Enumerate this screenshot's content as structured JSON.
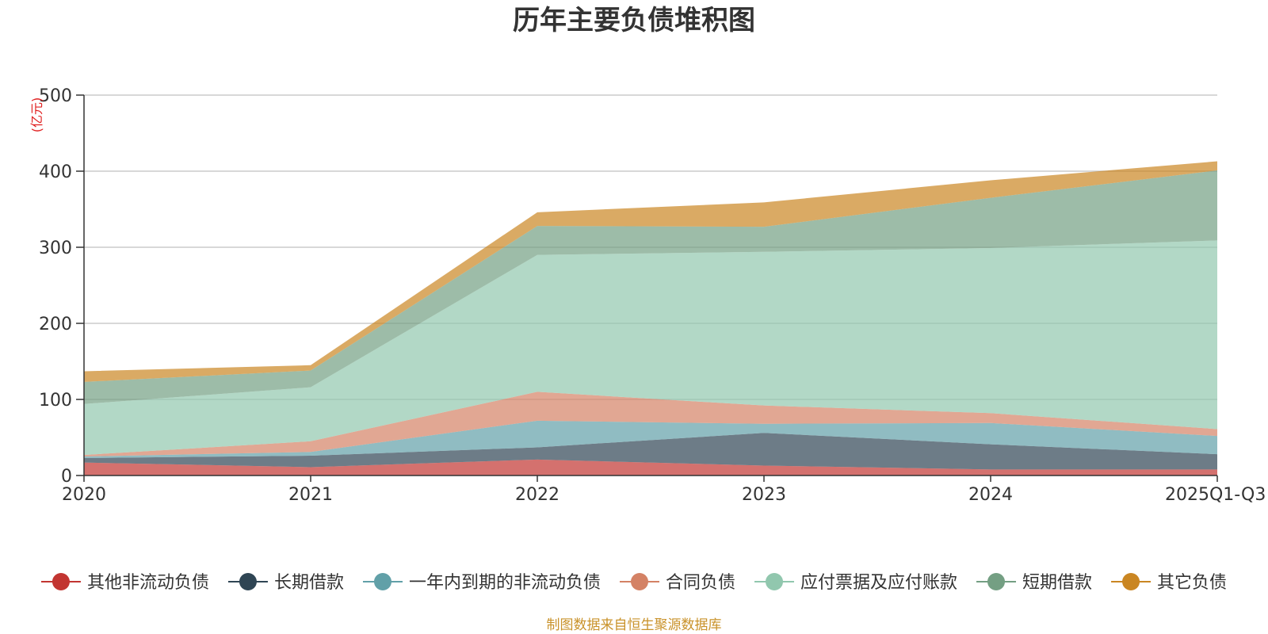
{
  "chart_data": {
    "type": "area",
    "stacked": true,
    "title": "历年主要负债堆积图",
    "unit_label": "(亿元)",
    "categories": [
      "2020",
      "2021",
      "2022",
      "2023",
      "2024",
      "2025Q1-Q3"
    ],
    "ylim": [
      0,
      500
    ],
    "yticks": [
      0,
      100,
      200,
      300,
      400,
      500
    ],
    "grid": true,
    "legend_position": "bottom",
    "series": [
      {
        "name": "其他非流动负债",
        "color": "#c23531",
        "values": [
          17,
          11,
          21,
          13,
          8,
          8
        ]
      },
      {
        "name": "长期借款",
        "color": "#2f4554",
        "values": [
          6,
          15,
          16,
          43,
          33,
          20
        ]
      },
      {
        "name": "一年内到期的非流动负债",
        "color": "#61a0a8",
        "values": [
          2,
          5,
          35,
          12,
          28,
          24
        ]
      },
      {
        "name": "合同负债",
        "color": "#d48265",
        "values": [
          2,
          14,
          38,
          24,
          13,
          9
        ]
      },
      {
        "name": "应付票据及应付账款",
        "color": "#91c7ae",
        "values": [
          67,
          71,
          180,
          202,
          217,
          248
        ]
      },
      {
        "name": "短期借款",
        "color": "#749f83",
        "values": [
          29,
          22,
          38,
          33,
          66,
          92
        ]
      },
      {
        "name": "其它负债",
        "color": "#ca8622",
        "values": [
          14,
          7,
          18,
          32,
          23,
          12
        ]
      }
    ]
  },
  "footer": {
    "source": "制图数据来自恒生聚源数据库"
  }
}
